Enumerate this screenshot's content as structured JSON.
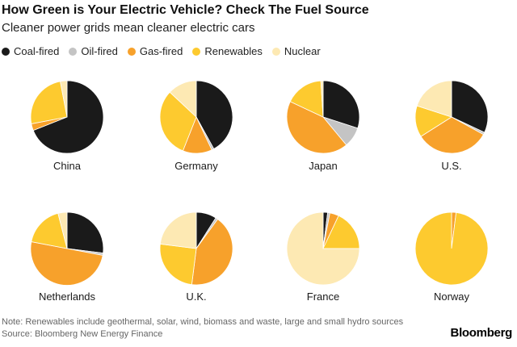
{
  "title": "How Green is Your Electric Vehicle? Check The Fuel Source",
  "subtitle": "Cleaner power grids mean cleaner electric cars",
  "legend": [
    {
      "label": "Coal-fired",
      "color": "#1a1a1a"
    },
    {
      "label": "Oil-fired",
      "color": "#c4c4c4"
    },
    {
      "label": "Gas-fired",
      "color": "#f7a12b"
    },
    {
      "label": "Renewables",
      "color": "#fdca2f"
    },
    {
      "label": "Nuclear",
      "color": "#fde9b3"
    }
  ],
  "chart_data": {
    "type": "pie",
    "title": "How Green is Your Electric Vehicle? Check The Fuel Source",
    "subtitle": "Cleaner power grids mean cleaner electric cars",
    "series_names": [
      "Coal-fired",
      "Oil-fired",
      "Gas-fired",
      "Renewables",
      "Nuclear"
    ],
    "colors": [
      "#1a1a1a",
      "#c4c4c4",
      "#f7a12b",
      "#fdca2f",
      "#fde9b3"
    ],
    "legend_position": "top",
    "units": "percent of power generation",
    "pies": [
      {
        "name": "China",
        "values": [
          69,
          0,
          3,
          25,
          3
        ]
      },
      {
        "name": "Germany",
        "values": [
          42,
          1,
          13,
          31,
          13
        ]
      },
      {
        "name": "Japan",
        "values": [
          30,
          9,
          43,
          17,
          1
        ]
      },
      {
        "name": "U.S.",
        "values": [
          32,
          1,
          33,
          14,
          20
        ]
      },
      {
        "name": "Netherlands",
        "values": [
          27,
          1,
          50,
          18,
          4
        ]
      },
      {
        "name": "U.K.",
        "values": [
          9,
          1,
          42,
          25,
          23
        ]
      },
      {
        "name": "France",
        "values": [
          2,
          1,
          4,
          18,
          75
        ]
      },
      {
        "name": "Norway",
        "values": [
          0,
          0,
          2,
          98,
          0
        ]
      }
    ]
  },
  "note": "Note: Renewables include geothermal, solar, wind, biomass and waste, large and small hydro sources",
  "source": "Source: Bloomberg New Energy Finance",
  "brand": "Bloomberg"
}
